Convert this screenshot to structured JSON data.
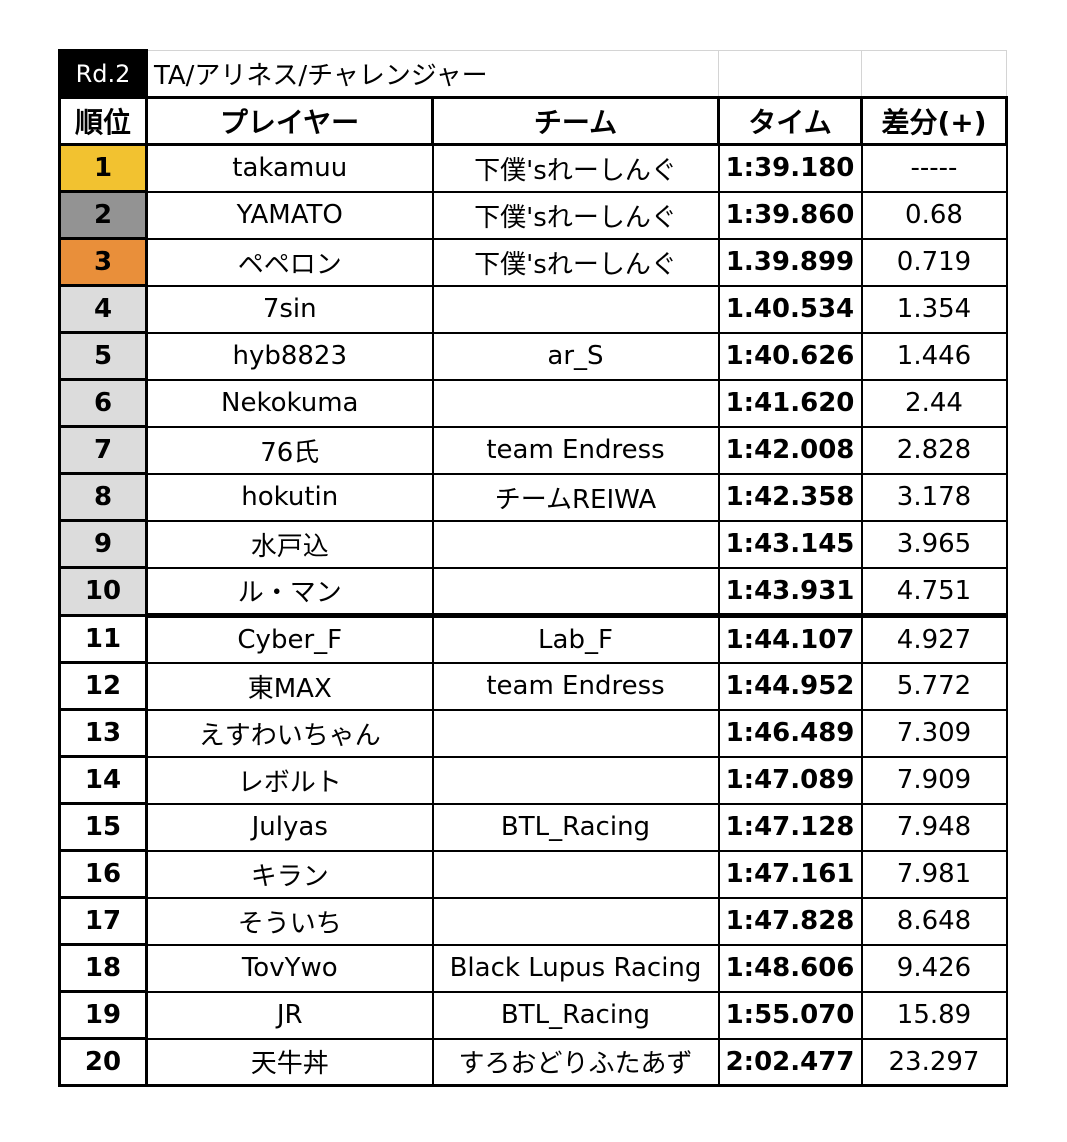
{
  "title_bar": {
    "round": "Rd.2",
    "title": "TA/アリネス/チャレンジャー"
  },
  "headers": {
    "rank": "順位",
    "player": "プレイヤー",
    "team": "チーム",
    "time": "タイム",
    "diff": "差分(+)"
  },
  "colors": {
    "gold": "#f2c230",
    "silver": "#939393",
    "bronze": "#e98f3a",
    "top10": "#dcdcdc",
    "default": "#ffffff"
  },
  "rows": [
    {
      "rank": "1",
      "player": "takamuu",
      "team": "下僕'sれーしんぐ",
      "time": "1:39.180",
      "diff": "-----",
      "medal": "gold"
    },
    {
      "rank": "2",
      "player": "YAMATO",
      "team": "下僕'sれーしんぐ",
      "time": "1:39.860",
      "diff": "0.68",
      "medal": "silver"
    },
    {
      "rank": "3",
      "player": "ペペロン",
      "team": "下僕'sれーしんぐ",
      "time": "1.39.899",
      "diff": "0.719",
      "medal": "bronze"
    },
    {
      "rank": "4",
      "player": "7sin",
      "team": "",
      "time": "1.40.534",
      "diff": "1.354",
      "medal": "top10"
    },
    {
      "rank": "5",
      "player": "hyb8823",
      "team": "ar_S",
      "time": "1:40.626",
      "diff": "1.446",
      "medal": "top10"
    },
    {
      "rank": "6",
      "player": "Nekokuma",
      "team": "",
      "time": "1:41.620",
      "diff": "2.44",
      "medal": "top10"
    },
    {
      "rank": "7",
      "player": "76氏",
      "team": "team Endress",
      "time": "1:42.008",
      "diff": "2.828",
      "medal": "top10"
    },
    {
      "rank": "8",
      "player": "hokutin",
      "team": "チームREIWA",
      "time": "1:42.358",
      "diff": "3.178",
      "medal": "top10"
    },
    {
      "rank": "9",
      "player": "水戸込",
      "team": "",
      "time": "1:43.145",
      "diff": "3.965",
      "medal": "top10"
    },
    {
      "rank": "10",
      "player": "ル・マン",
      "team": "",
      "time": "1:43.931",
      "diff": "4.751",
      "medal": "top10"
    },
    {
      "rank": "11",
      "player": "Cyber_F",
      "team": "Lab_F",
      "time": "1:44.107",
      "diff": "4.927",
      "medal": "default"
    },
    {
      "rank": "12",
      "player": "東MAX",
      "team": "team Endress",
      "time": "1:44.952",
      "diff": "5.772",
      "medal": "default"
    },
    {
      "rank": "13",
      "player": "えすわいちゃん",
      "team": "",
      "time": "1:46.489",
      "diff": "7.309",
      "medal": "default"
    },
    {
      "rank": "14",
      "player": "レボルト",
      "team": "",
      "time": "1:47.089",
      "diff": "7.909",
      "medal": "default"
    },
    {
      "rank": "15",
      "player": "Julyas",
      "team": "BTL_Racing",
      "time": "1:47.128",
      "diff": "7.948",
      "medal": "default"
    },
    {
      "rank": "16",
      "player": "キラン",
      "team": "",
      "time": "1:47.161",
      "diff": "7.981",
      "medal": "default"
    },
    {
      "rank": "17",
      "player": "そういち",
      "team": "",
      "time": "1:47.828",
      "diff": "8.648",
      "medal": "default"
    },
    {
      "rank": "18",
      "player": "TovYwo",
      "team": "Black Lupus Racing",
      "time": "1:48.606",
      "diff": "9.426",
      "medal": "default"
    },
    {
      "rank": "19",
      "player": "JR",
      "team": "BTL_Racing",
      "time": "1:55.070",
      "diff": "15.89",
      "medal": "default"
    },
    {
      "rank": "20",
      "player": "天牛丼",
      "team": "すろおどりふたあず",
      "time": "2:02.477",
      "diff": "23.297",
      "medal": "default"
    }
  ]
}
